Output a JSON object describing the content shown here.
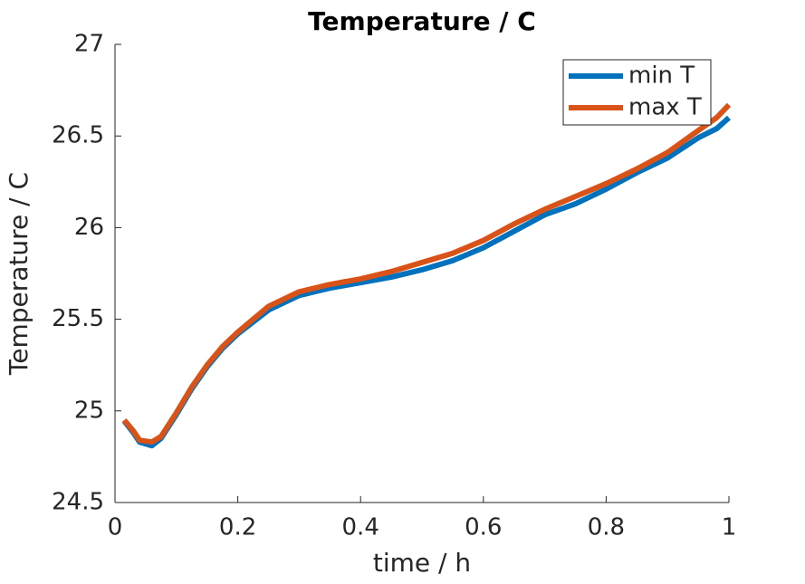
{
  "chart_data": {
    "type": "line",
    "title": "Temperature / C",
    "xlabel": "time / h",
    "ylabel": "Temperature / C",
    "x": [
      0.015,
      0.03,
      0.04,
      0.06,
      0.075,
      0.1,
      0.125,
      0.15,
      0.175,
      0.2,
      0.25,
      0.3,
      0.35,
      0.4,
      0.45,
      0.5,
      0.55,
      0.6,
      0.65,
      0.7,
      0.75,
      0.8,
      0.85,
      0.9,
      0.95,
      0.98,
      1.0
    ],
    "series": [
      {
        "name": "min T",
        "color": "#0072bd",
        "values": [
          24.945,
          24.88,
          24.83,
          24.81,
          24.85,
          24.98,
          25.12,
          25.24,
          25.34,
          25.42,
          25.55,
          25.63,
          25.67,
          25.7,
          25.73,
          25.77,
          25.82,
          25.89,
          25.98,
          26.07,
          26.13,
          26.21,
          26.3,
          26.38,
          26.49,
          26.54,
          26.6
        ]
      },
      {
        "name": "max T",
        "color": "#d95319",
        "values": [
          24.95,
          24.89,
          24.84,
          24.83,
          24.86,
          24.99,
          25.13,
          25.25,
          25.35,
          25.43,
          25.57,
          25.65,
          25.69,
          25.72,
          25.76,
          25.81,
          25.86,
          25.93,
          26.02,
          26.1,
          26.17,
          26.24,
          26.32,
          26.41,
          26.53,
          26.6,
          26.67
        ]
      }
    ],
    "xlim": [
      0,
      1
    ],
    "xticks": [
      0,
      0.2,
      0.4,
      0.6,
      0.8,
      1
    ],
    "ylim": [
      24.5,
      27
    ],
    "yticks": [
      24.5,
      25,
      25.5,
      26,
      26.5,
      27
    ],
    "legend": "top-right"
  }
}
